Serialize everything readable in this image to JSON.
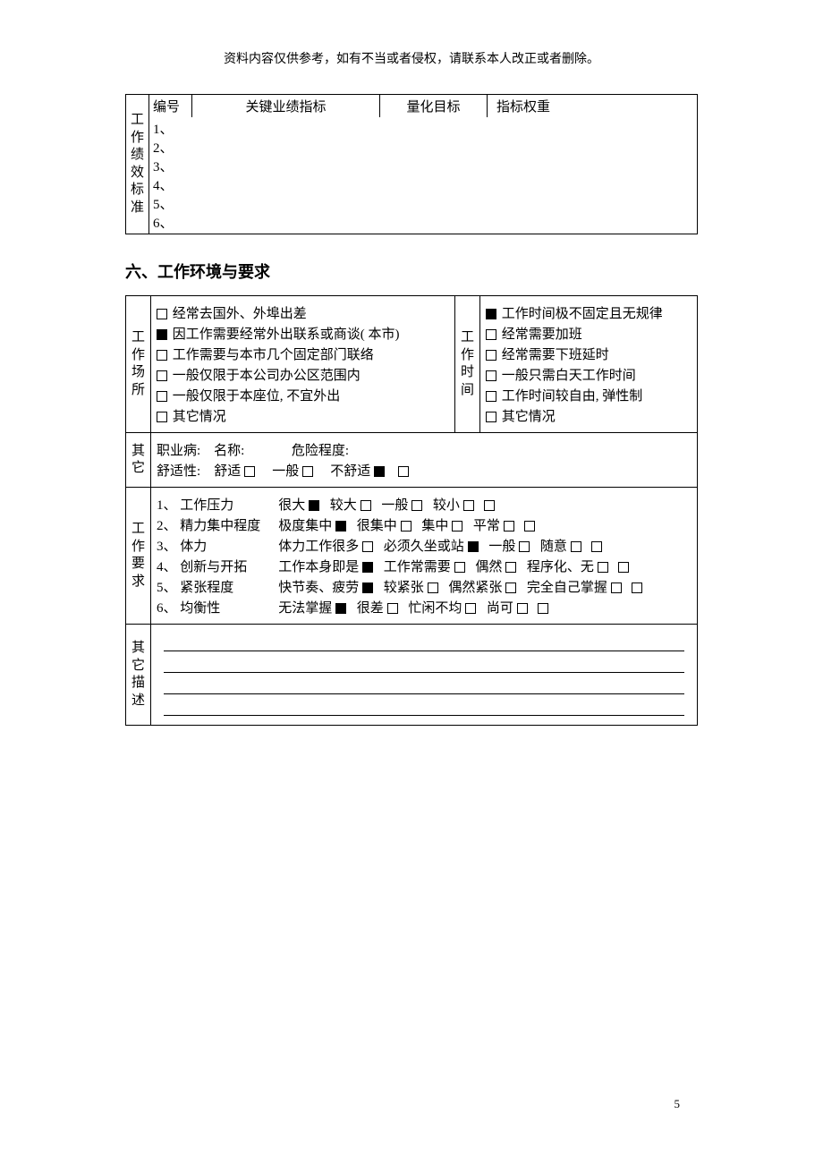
{
  "header_note": "资料内容仅供参考，如有不当或者侵权，请联系本人改正或者删除。",
  "table1": {
    "vlabel": "工作绩效标准",
    "headers": [
      "编号",
      "关键业绩指标",
      "量化目标",
      "指标权重"
    ],
    "rows": [
      "1、",
      "2、",
      "3、",
      "4、",
      "5、",
      "6、"
    ]
  },
  "section_title": "六、工作环境与要求",
  "place": {
    "label": "工作场所",
    "items": [
      {
        "text": "经常去国外、外埠出差",
        "checked": false
      },
      {
        "text": "因工作需要经常外出联系或商谈( 本市)",
        "checked": true
      },
      {
        "text": "工作需要与本市几个固定部门联络",
        "checked": false
      },
      {
        "text": "一般仅限于本公司办公区范围内",
        "checked": false
      },
      {
        "text": "一般仅限于本座位, 不宜外出",
        "checked": false
      },
      {
        "text": "其它情况",
        "checked": false
      }
    ]
  },
  "time": {
    "label": "工作时间",
    "items": [
      {
        "text": "工作时间极不固定且无规律",
        "checked": true
      },
      {
        "text": "经常需要加班",
        "checked": false
      },
      {
        "text": "经常需要下班延时",
        "checked": false
      },
      {
        "text": "一般只需白天工作时间",
        "checked": false
      },
      {
        "text": "工作时间较自由, 弹性制",
        "checked": false
      },
      {
        "text": "其它情况",
        "checked": false
      }
    ]
  },
  "other1": {
    "label": "其它",
    "line1_a": "职业病:",
    "line1_b": "名称:",
    "line1_c": "危险程度:",
    "line2_a": "舒适性:",
    "opts": [
      {
        "text": "舒适",
        "checked": false
      },
      {
        "text": "一般",
        "checked": false
      },
      {
        "text": "不舒适",
        "checked": true
      }
    ]
  },
  "req": {
    "label": "工作要求",
    "rows": [
      {
        "no": "1、",
        "name": "工作压力",
        "opts": [
          {
            "text": "很大",
            "checked": true
          },
          {
            "text": "较大",
            "checked": false
          },
          {
            "text": "一般",
            "checked": false
          },
          {
            "text": "较小",
            "checked": false
          },
          {
            "text": "",
            "checked": false
          }
        ]
      },
      {
        "no": "2、",
        "name": "精力集中程度",
        "opts": [
          {
            "text": "极度集中",
            "checked": true
          },
          {
            "text": "很集中",
            "checked": false
          },
          {
            "text": "集中",
            "checked": false
          },
          {
            "text": "平常",
            "checked": false
          },
          {
            "text": "",
            "checked": false
          }
        ]
      },
      {
        "no": "3、",
        "name": "体力",
        "opts": [
          {
            "text": "体力工作很多",
            "checked": false
          },
          {
            "text": "必须久坐或站",
            "checked": true
          },
          {
            "text": "一般",
            "checked": false
          },
          {
            "text": "随意",
            "checked": false
          },
          {
            "text": "",
            "checked": false
          }
        ]
      },
      {
        "no": "4、",
        "name": "创新与开拓",
        "opts": [
          {
            "text": "工作本身即是",
            "checked": true
          },
          {
            "text": "工作常需要",
            "checked": false
          },
          {
            "text": "偶然",
            "checked": false
          },
          {
            "text": "程序化、无",
            "checked": false
          },
          {
            "text": "",
            "checked": false
          }
        ]
      },
      {
        "no": "5、",
        "name": "紧张程度",
        "opts": [
          {
            "text": "快节奏、疲劳",
            "checked": true
          },
          {
            "text": "较紧张",
            "checked": false
          },
          {
            "text": "偶然紧张",
            "checked": false
          },
          {
            "text": "完全自己掌握",
            "checked": false
          },
          {
            "text": "",
            "checked": false
          }
        ]
      },
      {
        "no": "6、",
        "name": "均衡性",
        "opts": [
          {
            "text": "无法掌握",
            "checked": true
          },
          {
            "text": "很差",
            "checked": false
          },
          {
            "text": "忙闲不均",
            "checked": false
          },
          {
            "text": "尚可",
            "checked": false
          },
          {
            "text": "",
            "checked": false
          }
        ]
      }
    ]
  },
  "other2_label": "其它描述",
  "page_no": "5"
}
